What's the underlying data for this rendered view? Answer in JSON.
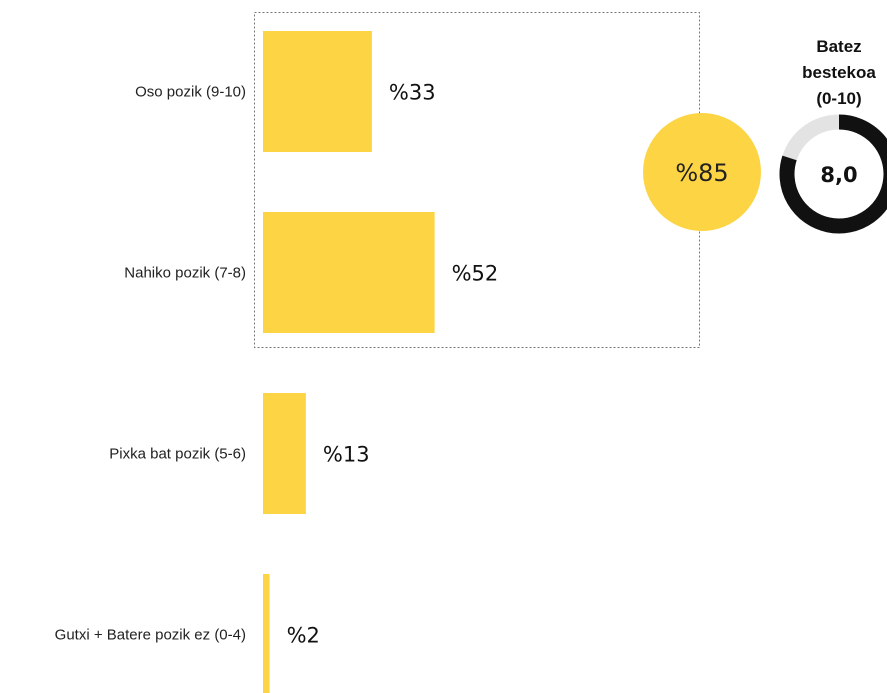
{
  "chart_data": {
    "type": "bar",
    "orientation": "horizontal",
    "categories": [
      "Oso pozik (9-10)",
      "Nahiko pozik (7-8)",
      "Pixka bat pozik (5-6)",
      "Gutxi + Batere pozik ez (0-4)"
    ],
    "values": [
      33,
      52,
      13,
      2
    ],
    "value_labels": [
      "%33",
      "%52",
      "%13",
      "%2"
    ],
    "unit": "%",
    "bar_color": "#FDD544",
    "highlight_group": {
      "categories": [
        "Oso pozik (9-10)",
        "Nahiko pozik (7-8)"
      ],
      "total": 85,
      "label": "%85",
      "color": "#FDD544"
    },
    "average": {
      "title_lines": [
        "Batez",
        "bestekoa",
        "(0-10)"
      ],
      "value": 8.0,
      "scale_max": 10,
      "label": "8,0",
      "ring_color": "#111111",
      "track_color": "#E3E3E3"
    }
  }
}
